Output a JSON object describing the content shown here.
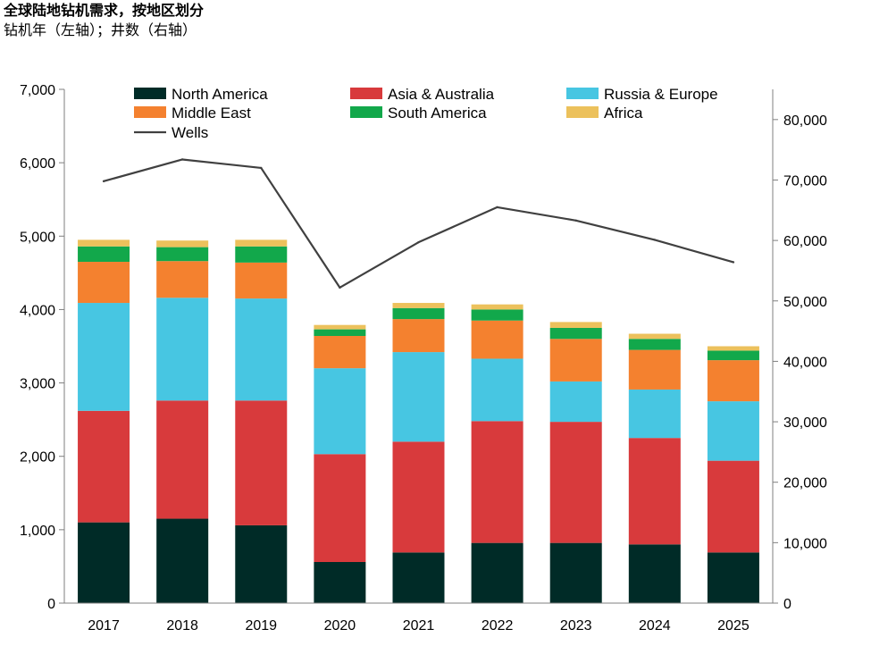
{
  "title": "全球陆地钻机需求，按地区划分",
  "subtitle": "钻机年（左轴）；井数（右轴）",
  "chart_data": {
    "type": "bar",
    "stacked": true,
    "categories": [
      "2017",
      "2018",
      "2019",
      "2020",
      "2021",
      "2022",
      "2023",
      "2024",
      "2025"
    ],
    "series": [
      {
        "name": "North America",
        "color": "#002b27",
        "values": [
          1100,
          1150,
          1060,
          560,
          690,
          820,
          820,
          800,
          690
        ]
      },
      {
        "name": "Asia & Australia",
        "color": "#d83a3c",
        "values": [
          1520,
          1610,
          1700,
          1470,
          1510,
          1660,
          1650,
          1450,
          1250
        ]
      },
      {
        "name": "Russia & Europe",
        "color": "#47c6e2",
        "values": [
          1470,
          1400,
          1390,
          1170,
          1220,
          850,
          550,
          660,
          810
        ]
      },
      {
        "name": "Middle East",
        "color": "#f4812f",
        "values": [
          560,
          500,
          490,
          440,
          450,
          520,
          580,
          540,
          560
        ]
      },
      {
        "name": "South America",
        "color": "#12a84b",
        "values": [
          210,
          190,
          220,
          90,
          150,
          150,
          150,
          150,
          130
        ]
      },
      {
        "name": "Africa",
        "color": "#ecc15c",
        "values": [
          90,
          90,
          90,
          60,
          70,
          70,
          80,
          70,
          60
        ]
      }
    ],
    "line_series": {
      "name": "Wells",
      "color": "#404040",
      "axis": "right",
      "values": [
        69800,
        73400,
        72000,
        52200,
        59700,
        65500,
        63300,
        60100,
        56400
      ]
    },
    "ylim_left": [
      0,
      7000
    ],
    "yticks_left": [
      "0",
      "1,000",
      "2,000",
      "3,000",
      "4,000",
      "5,000",
      "6,000",
      "7,000"
    ],
    "ylim_right": [
      0,
      85000
    ],
    "yticks_right": [
      "0",
      "10,000",
      "20,000",
      "30,000",
      "40,000",
      "50,000",
      "60,000",
      "70,000",
      "80,000"
    ],
    "legend_position": "top",
    "grid": false
  }
}
